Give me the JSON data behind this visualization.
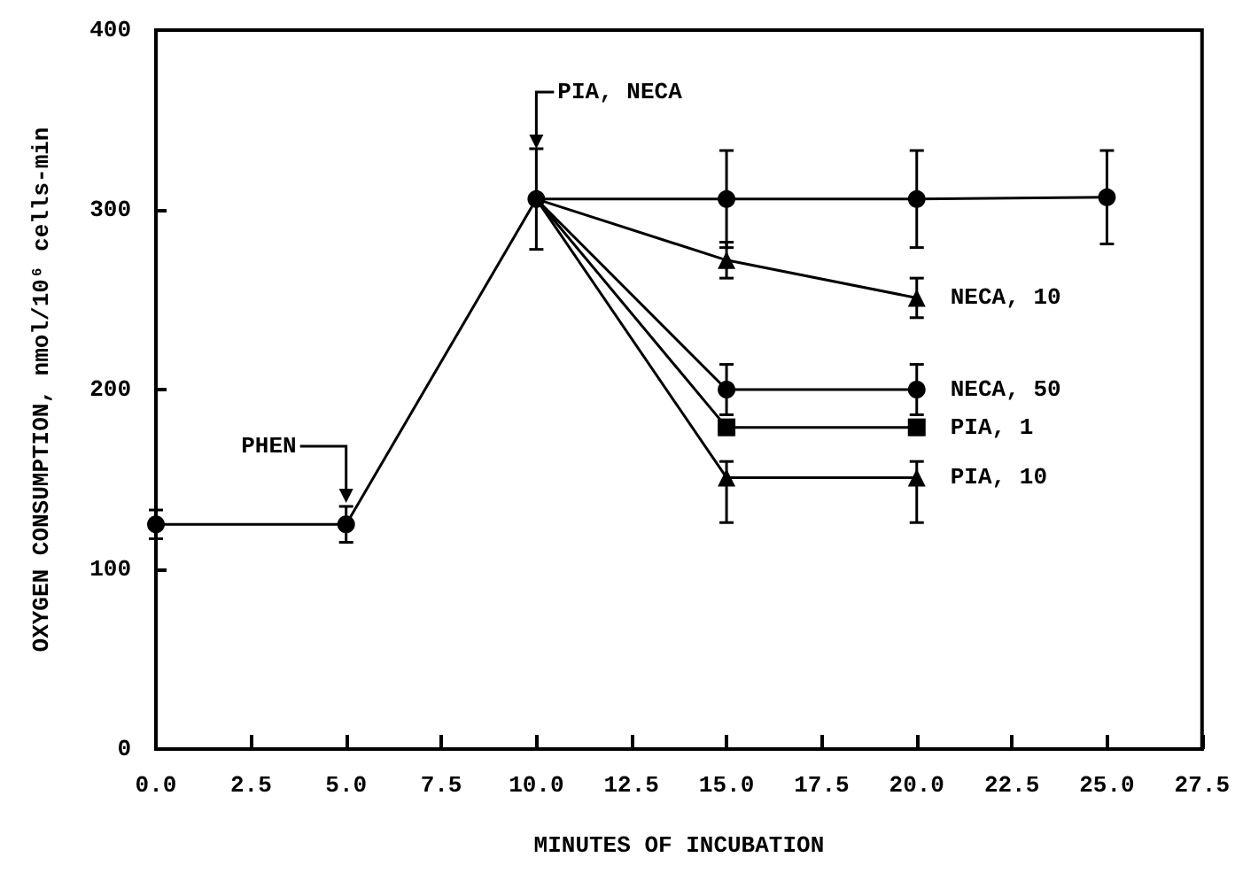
{
  "chart_data": {
    "type": "line",
    "xlabel": "MINUTES OF INCUBATION",
    "ylabel": "OXYGEN CONSUMPTION, nmol/10⁶ cells-min",
    "xlim": [
      0,
      27.5
    ],
    "ylim": [
      0,
      400
    ],
    "xticks": [
      {
        "value": 0,
        "label": "0.0"
      },
      {
        "value": 2.5,
        "label": "2.5"
      },
      {
        "value": 5,
        "label": "5.0"
      },
      {
        "value": 7.5,
        "label": "7.5"
      },
      {
        "value": 10,
        "label": "10.0"
      },
      {
        "value": 12.5,
        "label": "12.5"
      },
      {
        "value": 15,
        "label": "15.0"
      },
      {
        "value": 17.5,
        "label": "17.5"
      },
      {
        "value": 20,
        "label": "20.0"
      },
      {
        "value": 22.5,
        "label": "22.5"
      },
      {
        "value": 25,
        "label": "25.0"
      },
      {
        "value": 27.5,
        "label": "27.5"
      }
    ],
    "yticks": [
      0,
      100,
      200,
      300,
      400
    ],
    "grid": false,
    "legend": false,
    "line_style": "solid",
    "series": [
      {
        "color": "#000000",
        "marker": "circle",
        "x": [
          0,
          5,
          10,
          15,
          20,
          25
        ],
        "values": [
          125,
          125,
          306,
          306,
          306,
          307
        ],
        "errors": [
          8,
          10,
          28,
          27,
          27,
          26
        ]
      },
      {
        "name": "NECA, 10",
        "color": "#000000",
        "marker": "triangle",
        "x": [
          10,
          15,
          20
        ],
        "values": [
          306,
          272,
          251
        ],
        "errors": [
          null,
          10,
          11
        ]
      },
      {
        "name": "NECA, 50",
        "color": "#000000",
        "marker": "circle",
        "x": [
          10,
          15,
          20
        ],
        "values": [
          306,
          200,
          200
        ],
        "errors": [
          null,
          14,
          14
        ]
      },
      {
        "name": "PIA, 1",
        "color": "#000000",
        "marker": "square",
        "x": [
          10,
          15,
          20
        ],
        "values": [
          306,
          179,
          179
        ],
        "errors": [
          null,
          4,
          4
        ]
      },
      {
        "name": "PIA, 10",
        "color": "#000000",
        "marker": "triangle",
        "x": [
          10,
          15,
          20
        ],
        "values": [
          306,
          151,
          151
        ],
        "errors": [
          null,
          [
            126,
            160
          ],
          [
            126,
            160
          ]
        ]
      }
    ],
    "annotations": [
      {
        "text": "PHEN",
        "x": 5,
        "y": 137
      },
      {
        "text": "PIA, NECA",
        "x": 10,
        "y": 334
      }
    ]
  }
}
